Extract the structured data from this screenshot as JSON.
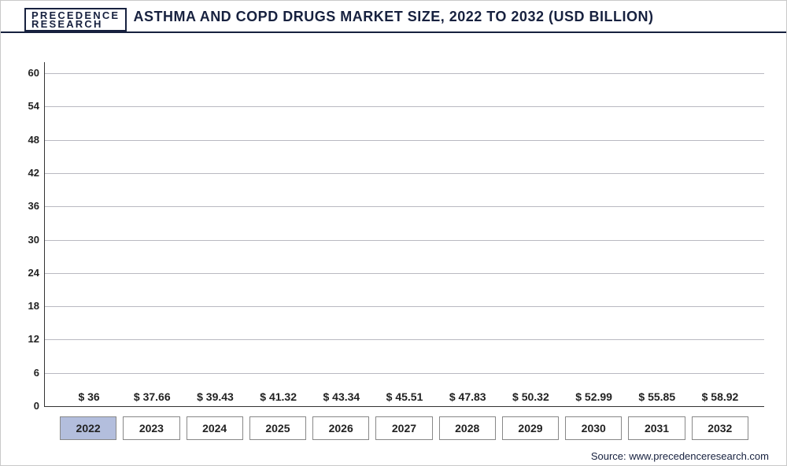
{
  "logo": {
    "line1": "PRECEDENCE",
    "line2": "RESEARCH"
  },
  "title": "ASTHMA AND COPD DRUGS MARKET SIZE, 2022 TO 2032 (USD BILLION)",
  "source": "Source: www.precedenceresearch.com",
  "chart": {
    "type": "bar",
    "background_color": "#ffffff",
    "grid_color": "#b9b9c1",
    "axis_color": "#333333",
    "ylim_min": 0,
    "ylim_max": 62,
    "ytick_step": 6,
    "yticks": [
      0,
      6,
      12,
      18,
      24,
      30,
      36,
      42,
      48,
      54,
      60
    ],
    "label_fontsize": 14,
    "value_prefix": "$ ",
    "categories": [
      "2022",
      "2023",
      "2024",
      "2025",
      "2026",
      "2027",
      "2028",
      "2029",
      "2030",
      "2031",
      "2032"
    ],
    "values": [
      36,
      37.66,
      39.43,
      41.32,
      43.34,
      45.51,
      47.83,
      50.32,
      52.99,
      55.85,
      58.92
    ],
    "value_labels": [
      "$ 36",
      "$ 37.66",
      "$ 39.43",
      "$ 41.32",
      "$ 43.34",
      "$ 45.51",
      "$ 47.83",
      "$ 50.32",
      "$ 52.99",
      "$ 55.85",
      "$ 58.92"
    ],
    "bar_colors": [
      "#b3bedd",
      "#5d6d9c",
      "#4d5e97",
      "#434f8b",
      "#374276",
      "#2d3a6e",
      "#24305e",
      "#1c2750",
      "#17213f",
      "#111a33",
      "#0e172c"
    ],
    "first_category_highlight_bg": "#b3bedd"
  }
}
